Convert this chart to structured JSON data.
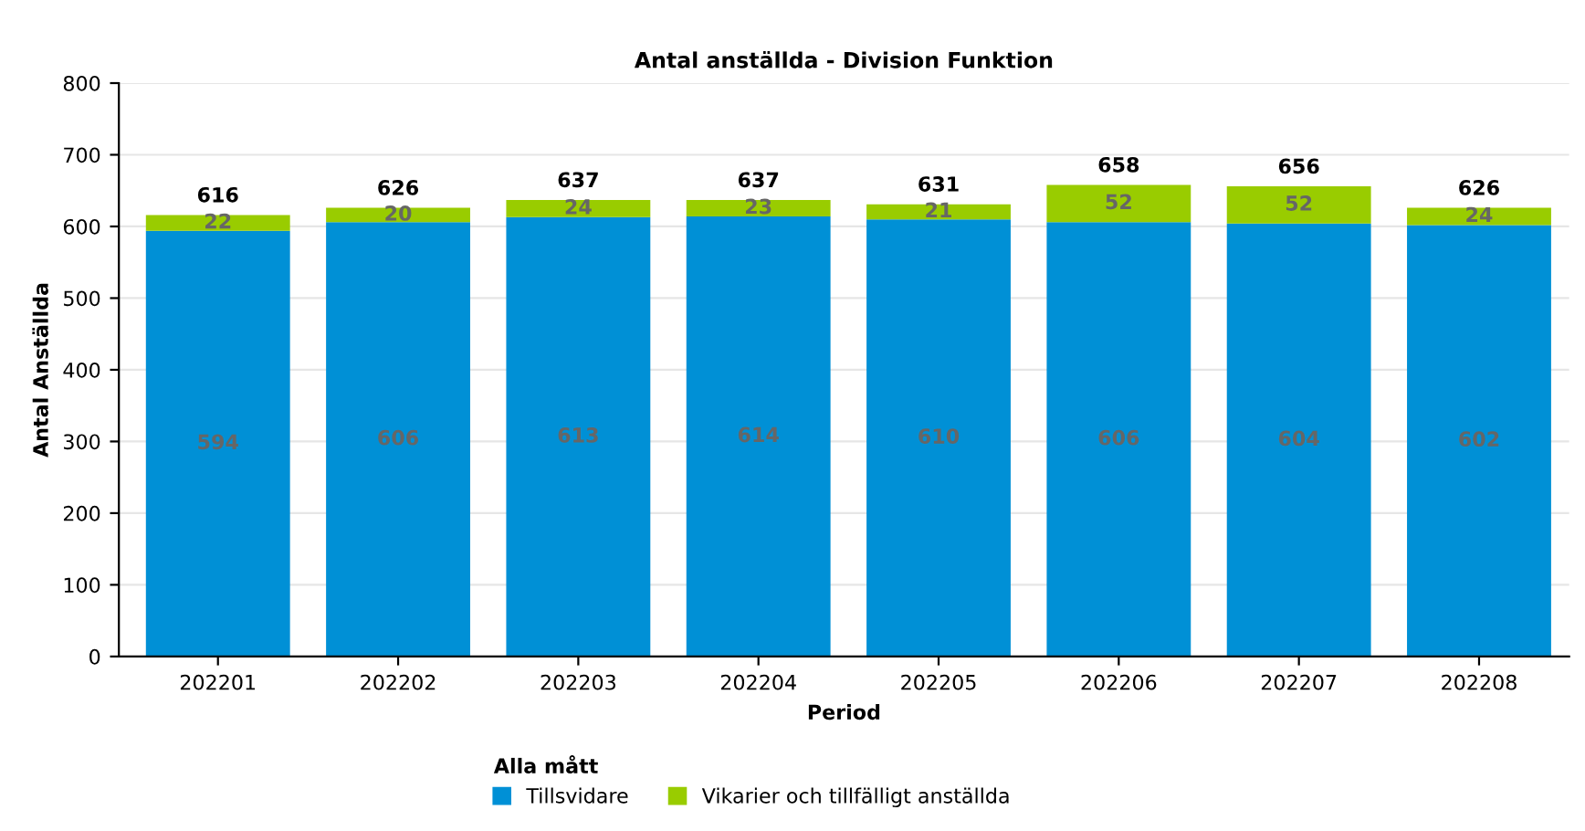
{
  "chart_data": {
    "type": "bar",
    "title": "Antal anställda - Division Funktion",
    "xlabel": "Period",
    "ylabel": "Antal Anställda",
    "categories": [
      "202201",
      "202202",
      "202203",
      "202204",
      "202205",
      "202206",
      "202207",
      "202208"
    ],
    "stacked": true,
    "series": [
      {
        "name": "Tillsvidare",
        "color": "#0090d6",
        "values": [
          594,
          606,
          613,
          614,
          610,
          606,
          604,
          602
        ]
      },
      {
        "name": "Vikarier och tillfälligt anställda",
        "color": "#99cc00",
        "values": [
          22,
          20,
          24,
          23,
          21,
          52,
          52,
          24
        ]
      }
    ],
    "data_labels": true,
    "totals": [
      "616",
      "626",
      "637",
      "637",
      "631",
      "658",
      "656",
      "626"
    ],
    "ylim": [
      0,
      800
    ],
    "yticks": [
      0,
      100,
      200,
      300,
      400,
      500,
      600,
      700,
      800
    ],
    "grid": "y",
    "legend": "bottom",
    "legend_title": "Alla mått"
  }
}
